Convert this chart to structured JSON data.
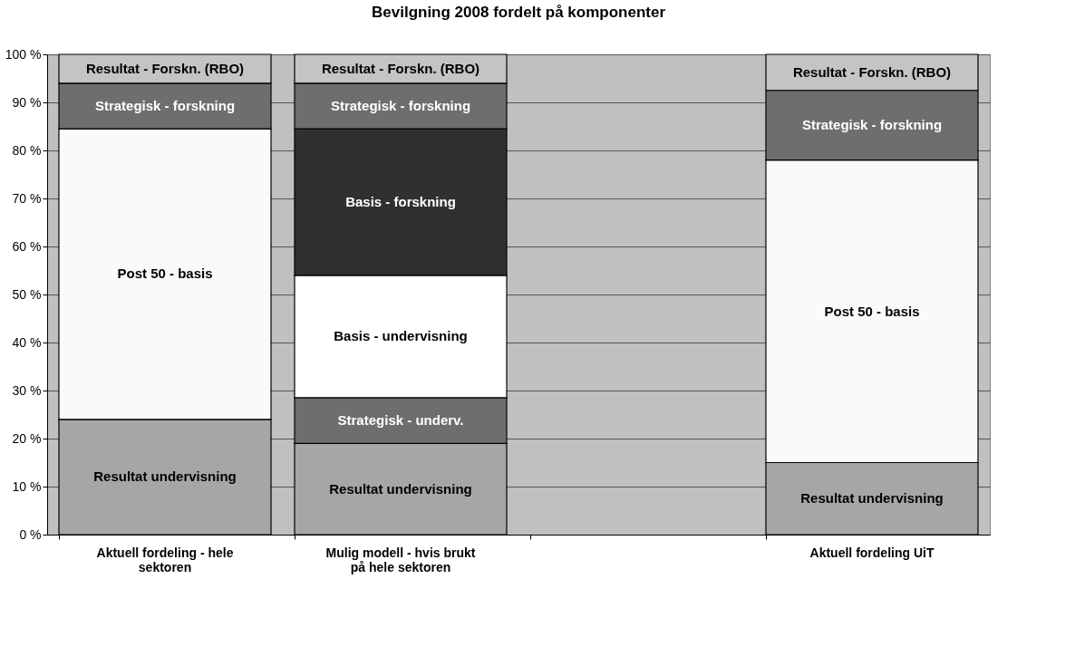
{
  "chart_data": {
    "type": "bar",
    "stacked": true,
    "title": "Bevilgning 2008 fordelt på komponenter",
    "categories": [
      "Aktuell fordeling - hele sektoren",
      "Mulig modell - hvis brukt på hele sektoren",
      null,
      "Aktuell fordeling UiT"
    ],
    "series": [
      {
        "name": "Resultat undervisning",
        "color": "#a6a6a6",
        "values": [
          24,
          19,
          null,
          15
        ]
      },
      {
        "name": "Strategisk - underv.",
        "color": "#6e6e6e",
        "values": [
          null,
          9.5,
          null,
          null
        ]
      },
      {
        "name": "Basis - undervisning",
        "color": "#ffffff",
        "values": [
          null,
          25.5,
          null,
          null
        ]
      },
      {
        "name": "Post 50 - basis",
        "color": "#fafafa",
        "values": [
          60.5,
          null,
          null,
          63
        ]
      },
      {
        "name": "Basis - forskning",
        "color": "#303030",
        "values": [
          null,
          30.5,
          null,
          null
        ]
      },
      {
        "name": "Strategisk - forskning",
        "color": "#6e6e6e",
        "values": [
          9.5,
          9.5,
          null,
          14.5
        ]
      },
      {
        "name": "Resultat - Forskn. (RBO)",
        "color": "#c4c4c4",
        "values": [
          6,
          6,
          null,
          7.5
        ]
      }
    ],
    "ylim": [
      0,
      100
    ],
    "yticks": [
      {
        "value": 0,
        "label": "0 %"
      },
      {
        "value": 10,
        "label": "10 %"
      },
      {
        "value": 20,
        "label": "20 %"
      },
      {
        "value": 30,
        "label": "30 %"
      },
      {
        "value": 40,
        "label": "40 %"
      },
      {
        "value": 50,
        "label": "50 %"
      },
      {
        "value": 60,
        "label": "60 %"
      },
      {
        "value": 70,
        "label": "70 %"
      },
      {
        "value": 80,
        "label": "80 %"
      },
      {
        "value": 90,
        "label": "90 %"
      },
      {
        "value": 100,
        "label": "100 %"
      }
    ],
    "grid": "y",
    "legend": false
  }
}
